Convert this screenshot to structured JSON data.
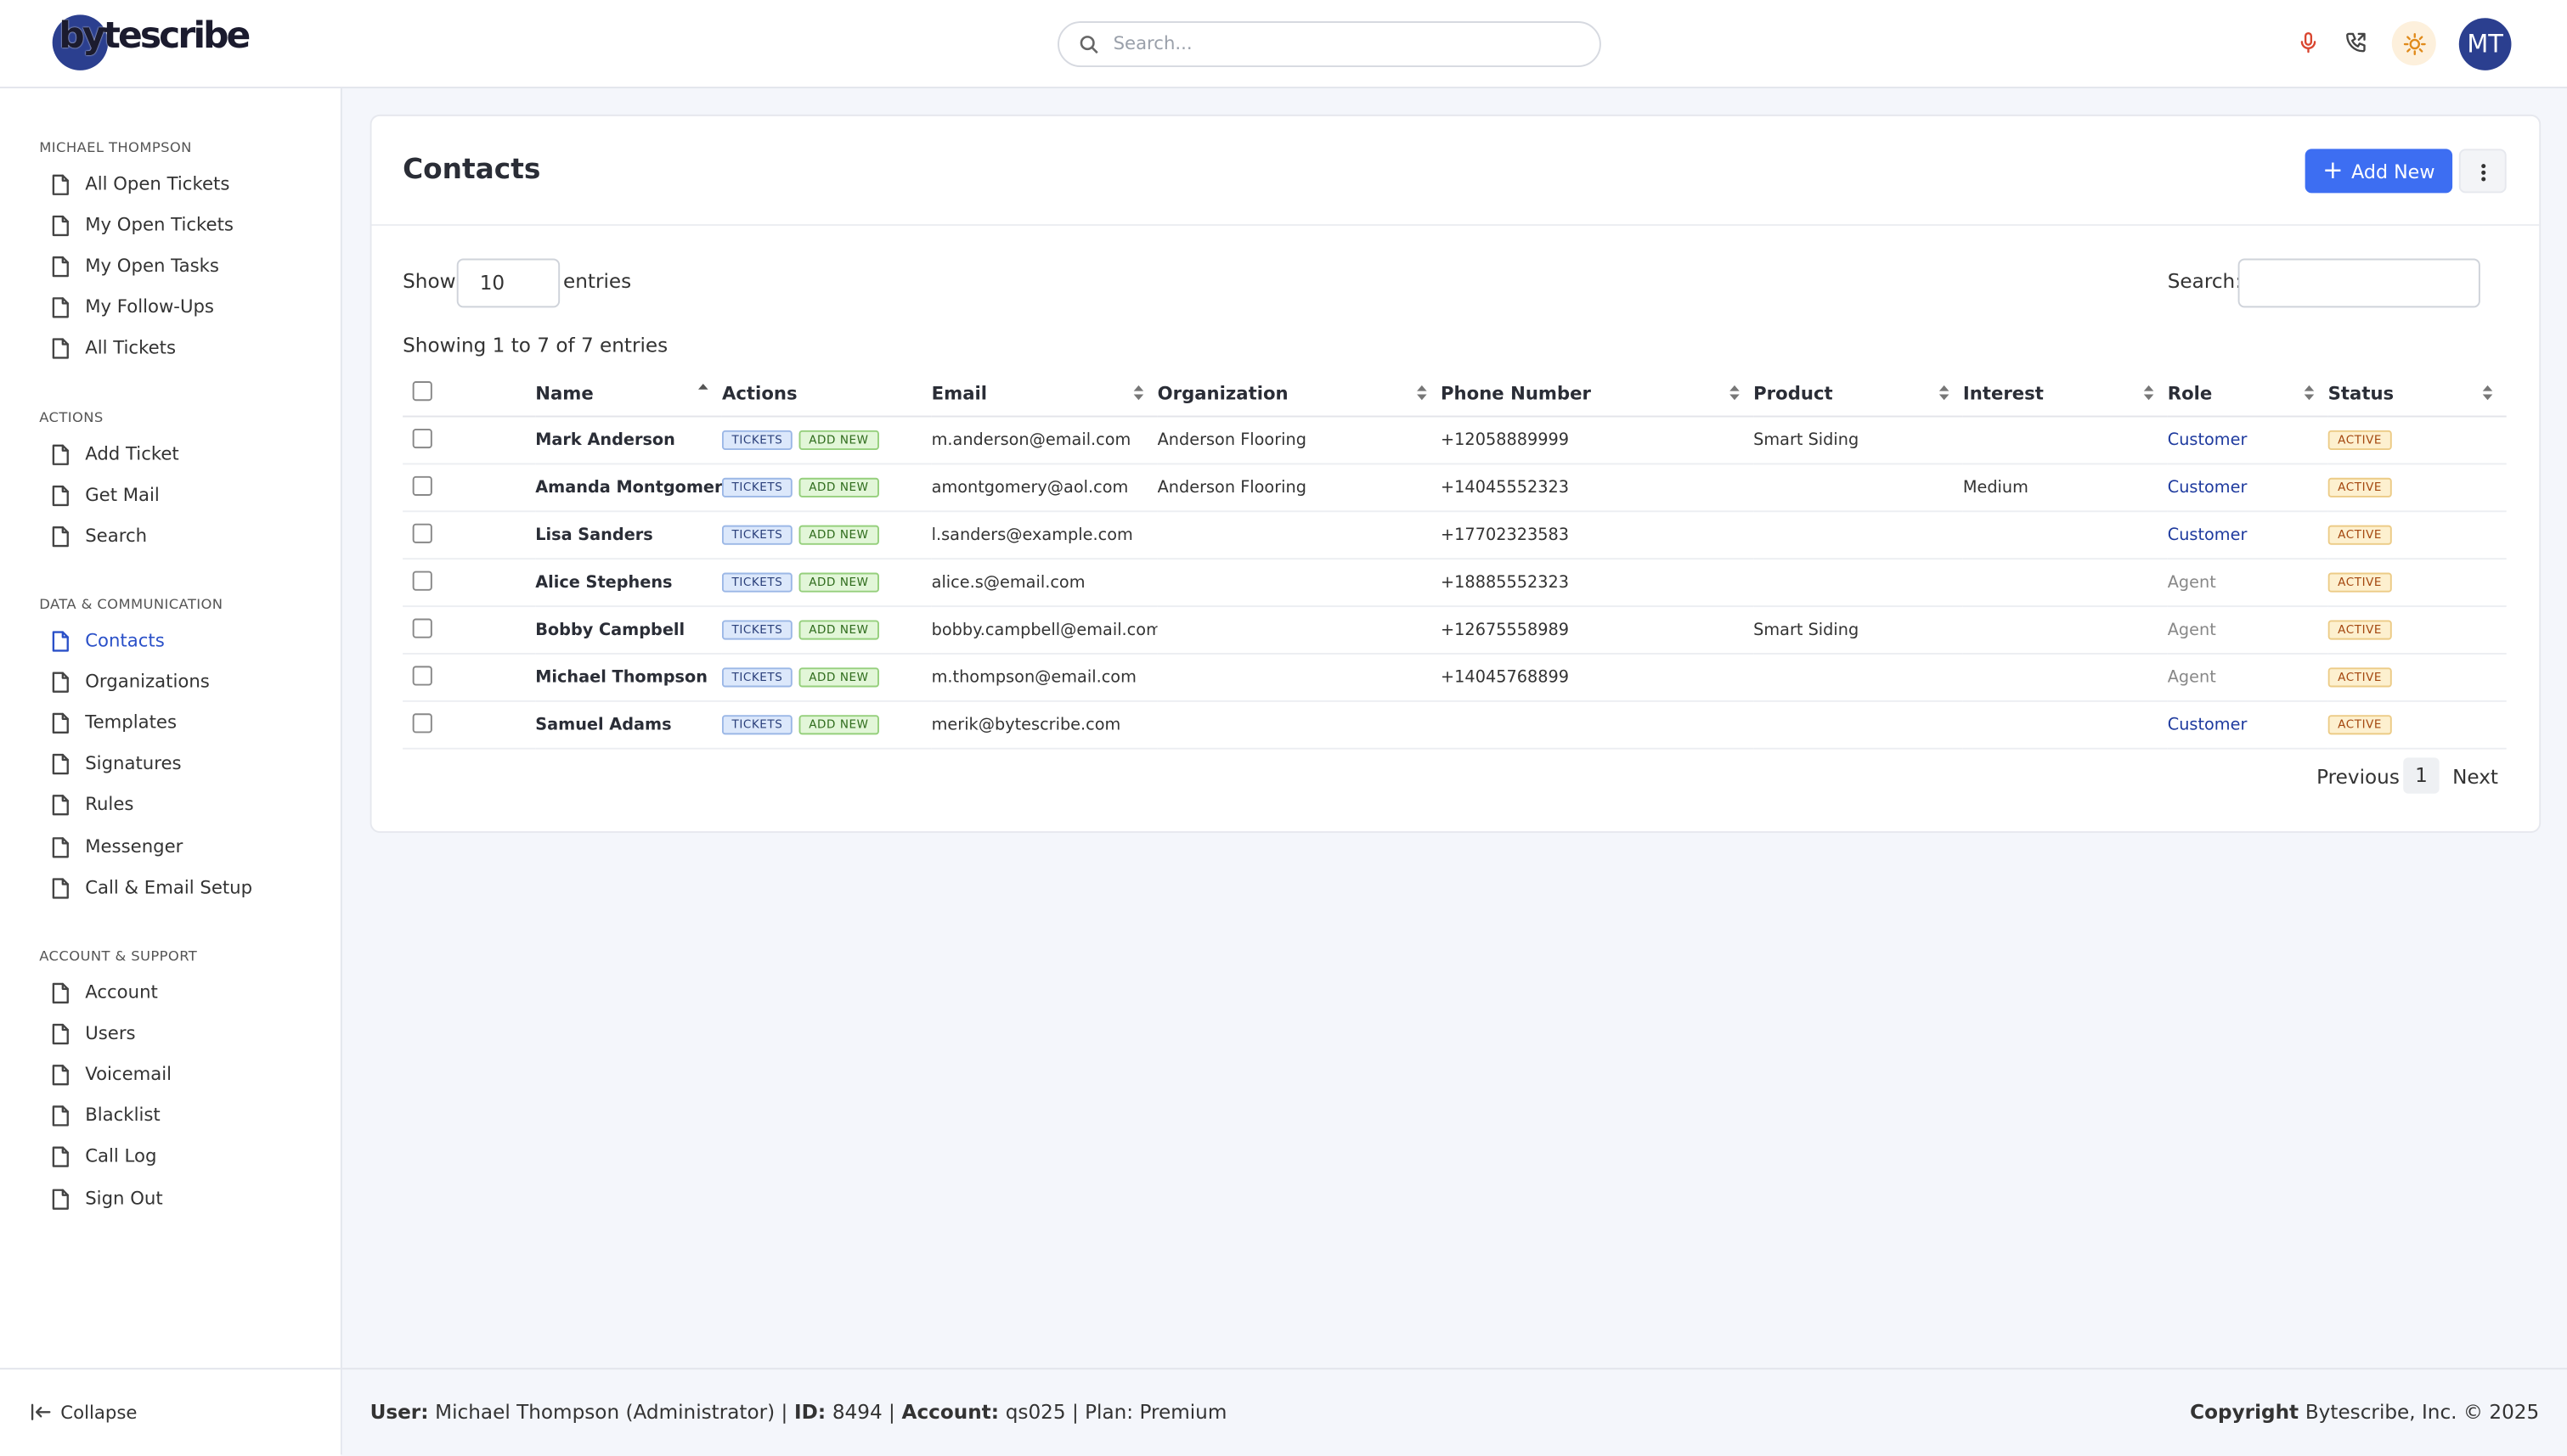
{
  "header": {
    "logo": "bytescribe",
    "search_placeholder": "Search...",
    "avatar": "MT"
  },
  "sidebar": {
    "sections": [
      {
        "title": "MICHAEL THOMPSON",
        "items": [
          {
            "label": "All Open Tickets"
          },
          {
            "label": "My Open Tickets"
          },
          {
            "label": "My Open Tasks"
          },
          {
            "label": "My Follow-Ups"
          },
          {
            "label": "All Tickets"
          }
        ]
      },
      {
        "title": "ACTIONS",
        "items": [
          {
            "label": "Add Ticket"
          },
          {
            "label": "Get Mail"
          },
          {
            "label": "Search"
          }
        ]
      },
      {
        "title": "DATA & COMMUNICATION",
        "items": [
          {
            "label": "Contacts",
            "active": true
          },
          {
            "label": "Organizations"
          },
          {
            "label": "Templates"
          },
          {
            "label": "Signatures"
          },
          {
            "label": "Rules"
          },
          {
            "label": "Messenger"
          },
          {
            "label": "Call & Email Setup"
          }
        ]
      },
      {
        "title": "ACCOUNT & SUPPORT",
        "items": [
          {
            "label": "Account"
          },
          {
            "label": "Users"
          },
          {
            "label": "Voicemail"
          },
          {
            "label": "Blacklist"
          },
          {
            "label": "Call Log"
          },
          {
            "label": "Sign Out"
          }
        ]
      }
    ],
    "collapse": "Collapse"
  },
  "content": {
    "title": "Contacts",
    "add_button": "Add New",
    "show_label": "Show",
    "entries_value": "10",
    "entries_label": "entries",
    "search_label": "Search:",
    "info": "Showing 1 to 7 of 7 entries",
    "columns": [
      {
        "label": "Name",
        "sort": "asc"
      },
      {
        "label": "Actions"
      },
      {
        "label": "Email",
        "sort": "both"
      },
      {
        "label": "Organization",
        "sort": "both"
      },
      {
        "label": "Phone Number",
        "sort": "both"
      },
      {
        "label": "Product",
        "sort": "both"
      },
      {
        "label": "Interest",
        "sort": "both"
      },
      {
        "label": "Role",
        "sort": "both"
      },
      {
        "label": "Status",
        "sort": "both"
      }
    ],
    "rows": [
      {
        "name": "Mark Anderson",
        "actions": [
          "TICKETS",
          "ADD NEW"
        ],
        "email": "m.anderson@email.com",
        "organization": "Anderson Flooring",
        "phone": "+12058889999",
        "product": "Smart Siding",
        "interest": null,
        "role": "Customer",
        "role_color": "#1e3a9e",
        "status": "ACTIVE"
      },
      {
        "name": "Amanda Montgomery",
        "actions": [
          "TICKETS",
          "ADD NEW"
        ],
        "email": "amontgomery@aol.com",
        "organization": "Anderson Flooring",
        "phone": "+14045552323",
        "product": null,
        "interest": "Medium",
        "role": "Customer",
        "role_color": "#1e3a9e",
        "status": "ACTIVE"
      },
      {
        "name": "Lisa Sanders",
        "actions": [
          "TICKETS",
          "ADD NEW"
        ],
        "email": "l.sanders@example.com",
        "organization": null,
        "phone": "+17702323583",
        "product": null,
        "interest": null,
        "role": "Customer",
        "role_color": "#1e3a9e",
        "status": "ACTIVE"
      },
      {
        "name": "Alice Stephens",
        "actions": [
          "TICKETS",
          "ADD NEW"
        ],
        "email": "alice.s@email.com",
        "organization": null,
        "phone": "+18885552323",
        "product": null,
        "interest": null,
        "role": "Agent",
        "role_color": "#888888",
        "status": "ACTIVE"
      },
      {
        "name": "Bobby Campbell",
        "actions": [
          "TICKETS",
          "ADD NEW"
        ],
        "email": "bobby.campbell@email.com",
        "organization": null,
        "phone": "+12675558989",
        "product": "Smart Siding",
        "interest": null,
        "role": "Agent",
        "role_color": "#888888",
        "status": "ACTIVE"
      },
      {
        "name": "Michael Thompson",
        "actions": [
          "TICKETS",
          "ADD NEW"
        ],
        "email": "m.thompson@email.com",
        "organization": null,
        "phone": "+14045768899",
        "product": null,
        "interest": null,
        "role": "Agent",
        "role_color": "#888888",
        "status": "ACTIVE"
      },
      {
        "name": "Samuel Adams",
        "actions": [
          "TICKETS",
          "ADD NEW"
        ],
        "email": "merik@bytescribe.com",
        "organization": null,
        "phone": null,
        "product": null,
        "interest": null,
        "role": "Customer",
        "role_color": "#1e3a9e",
        "status": "ACTIVE"
      }
    ],
    "pagination": {
      "previous": "Previous",
      "page": "1",
      "next": "Next"
    }
  },
  "footer": {
    "left": [
      {
        "text": "User:",
        "bold": true
      },
      {
        "text": "Michael Thompson (Administrator) |"
      },
      {
        "text": "ID:",
        "bold": true
      },
      {
        "text": "8494 |"
      },
      {
        "text": "Account:",
        "bold": true
      },
      {
        "text": "qs025 | Plan: Premium"
      }
    ],
    "right": [
      {
        "text": "Copyright",
        "bold": true
      },
      {
        "text": "Bytescribe, Inc. © 2025"
      }
    ]
  }
}
